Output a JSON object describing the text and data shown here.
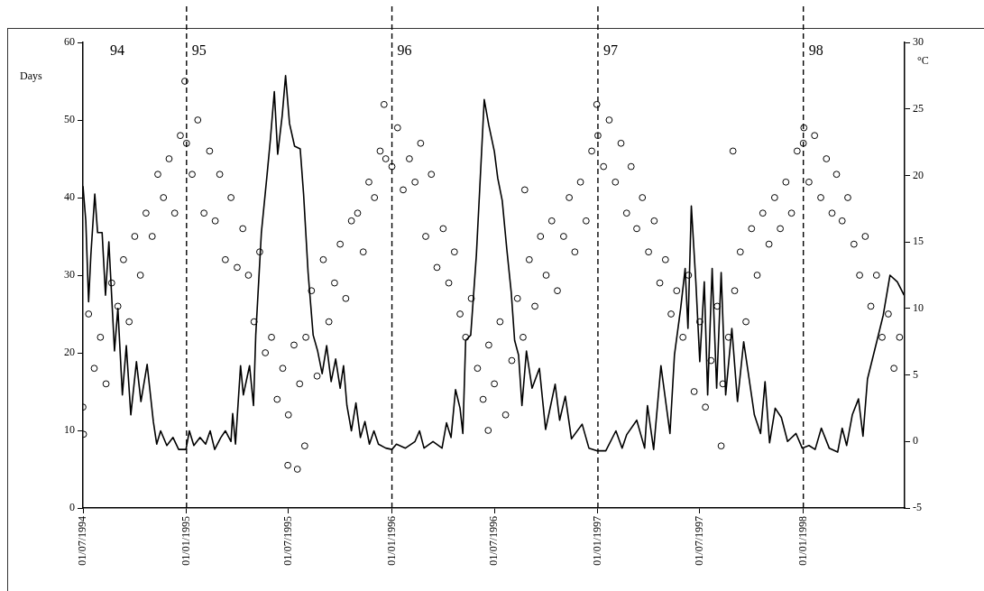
{
  "chart_data": {
    "type": "scatter",
    "ylabel": "Days",
    "y2label": "°C",
    "xlim": [
      "1994-07-01",
      "1998-06-30"
    ],
    "xticks": [
      {
        "value": "1994-07-01",
        "label": "01/07/1994"
      },
      {
        "value": "1995-01-01",
        "label": "01/01/1995"
      },
      {
        "value": "1995-07-01",
        "label": "01/07/1995"
      },
      {
        "value": "1996-01-01",
        "label": "01/01/1996"
      },
      {
        "value": "1996-07-01",
        "label": "01/07/1996"
      },
      {
        "value": "1997-01-01",
        "label": "01/01/1997"
      },
      {
        "value": "1997-07-01",
        "label": "01/07/1997"
      },
      {
        "value": "1998-01-01",
        "label": "01/01/1998"
      }
    ],
    "ylim": [
      0,
      60
    ],
    "yticks": [
      0,
      10,
      20,
      30,
      40,
      50,
      60
    ],
    "y2lim": [
      -5,
      30
    ],
    "y2ticks": [
      -5,
      0,
      5,
      10,
      15,
      20,
      25,
      30
    ],
    "ref_lines": [
      {
        "axis": "x",
        "value": "1995-01-01",
        "label": "95",
        "color": "#000000",
        "line_style": "dashed"
      },
      {
        "axis": "x",
        "value": "1996-01-01",
        "label": "96",
        "color": "#000000",
        "line_style": "dashed"
      },
      {
        "axis": "x",
        "value": "1997-01-01",
        "label": "97",
        "color": "#000000",
        "line_style": "dashed"
      },
      {
        "axis": "x",
        "value": "1998-01-01",
        "label": "98",
        "color": "#000000",
        "line_style": "dashed"
      }
    ],
    "annotations": [
      "94"
    ],
    "series": [
      {
        "type": "scatter",
        "color": "#000000",
        "marker": "circle",
        "x": [
          "1994-07-01",
          "1994-07-11",
          "1994-07-21",
          "1994-08-01",
          "1994-08-11",
          "1994-08-21",
          "1994-09-01",
          "1994-09-11",
          "1994-09-21",
          "1994-10-01",
          "1994-10-11",
          "1994-10-21",
          "1994-11-01",
          "1994-11-11",
          "1994-11-21",
          "1994-12-01",
          "1994-12-11",
          "1994-12-21",
          "1995-01-01",
          "1995-01-11",
          "1995-01-21",
          "1995-02-01",
          "1995-02-11",
          "1995-02-21",
          "1995-03-01",
          "1995-03-11",
          "1995-03-21",
          "1995-04-01",
          "1995-04-11",
          "1995-04-21",
          "1995-05-01",
          "1995-05-11",
          "1995-05-21",
          "1995-06-01",
          "1995-06-11",
          "1995-06-21",
          "1995-07-01",
          "1995-07-11",
          "1995-07-21",
          "1995-08-01",
          "1995-08-11",
          "1995-08-21",
          "1995-09-01",
          "1995-09-11",
          "1995-09-21",
          "1995-10-01",
          "1995-10-11",
          "1995-10-21",
          "1995-11-01",
          "1995-11-11",
          "1995-11-21",
          "1995-12-01",
          "1995-12-11",
          "1995-12-21",
          "1996-01-01",
          "1996-01-11",
          "1996-01-21",
          "1996-02-01",
          "1996-02-11",
          "1996-02-21",
          "1996-03-01",
          "1996-03-11",
          "1996-03-21",
          "1996-04-01",
          "1996-04-11",
          "1996-04-21",
          "1996-05-01",
          "1996-05-11",
          "1996-05-21",
          "1996-06-01",
          "1996-06-11",
          "1996-06-21",
          "1996-07-01",
          "1996-07-11",
          "1996-07-21",
          "1996-08-01",
          "1996-08-11",
          "1996-08-21",
          "1996-09-01",
          "1996-09-11",
          "1996-09-21",
          "1996-10-01",
          "1996-10-11",
          "1996-10-21",
          "1996-11-01",
          "1996-11-11",
          "1996-11-21",
          "1996-12-01",
          "1996-12-11",
          "1996-12-21",
          "1997-01-01",
          "1997-01-11",
          "1997-01-21",
          "1997-02-01",
          "1997-02-11",
          "1997-02-21",
          "1997-03-01",
          "1997-03-11",
          "1997-03-21",
          "1997-04-01",
          "1997-04-11",
          "1997-04-21",
          "1997-05-01",
          "1997-05-11",
          "1997-05-21",
          "1997-06-01",
          "1997-06-11",
          "1997-06-21",
          "1997-07-01",
          "1997-07-11",
          "1997-07-21",
          "1997-08-01",
          "1997-08-11",
          "1997-08-21",
          "1997-09-01",
          "1997-09-11",
          "1997-09-21",
          "1997-10-01",
          "1997-10-11",
          "1997-10-21",
          "1997-11-01",
          "1997-11-11",
          "1997-11-21",
          "1997-12-01",
          "1997-12-11",
          "1997-12-21",
          "1998-01-01",
          "1998-01-11",
          "1998-01-21",
          "1998-02-01",
          "1998-02-11",
          "1998-02-21",
          "1998-03-01",
          "1998-03-11",
          "1998-03-21",
          "1998-04-01",
          "1998-04-11",
          "1998-04-21",
          "1998-05-01",
          "1998-05-11",
          "1998-05-21",
          "1998-06-01",
          "1998-06-11",
          "1998-06-21",
          "1994-07-02",
          "1994-12-29",
          "1995-06-30",
          "1995-07-17",
          "1995-07-30",
          "1995-12-18",
          "1996-06-20",
          "1996-08-24",
          "1996-12-30",
          "1997-08-08",
          "1997-08-29",
          "1998-01-02"
        ],
        "values": [
          13,
          25,
          18,
          22,
          16,
          29,
          26,
          32,
          24,
          35,
          30,
          38,
          35,
          43,
          40,
          45,
          38,
          48,
          47,
          43,
          50,
          38,
          46,
          37,
          43,
          32,
          40,
          31,
          36,
          30,
          24,
          33,
          20,
          22,
          14,
          18,
          12,
          21,
          16,
          22,
          28,
          17,
          32,
          24,
          29,
          34,
          27,
          37,
          38,
          33,
          42,
          40,
          46,
          45,
          44,
          49,
          41,
          45,
          42,
          47,
          35,
          43,
          31,
          36,
          29,
          33,
          25,
          22,
          27,
          18,
          14,
          21,
          16,
          24,
          12,
          19,
          27,
          22,
          32,
          26,
          35,
          30,
          37,
          28,
          35,
          40,
          33,
          42,
          37,
          46,
          48,
          44,
          50,
          42,
          47,
          38,
          44,
          36,
          40,
          33,
          37,
          29,
          32,
          25,
          28,
          22,
          30,
          15,
          24,
          13,
          19,
          26,
          16,
          22,
          28,
          33,
          24,
          36,
          30,
          38,
          34,
          40,
          36,
          42,
          38,
          46,
          47,
          42,
          48,
          40,
          45,
          38,
          43,
          37,
          40,
          34,
          30,
          35,
          26,
          30,
          22,
          25,
          18,
          22,
          9.5,
          55,
          5.5,
          5,
          8,
          52,
          10,
          41,
          52,
          8,
          46,
          49
        ]
      },
      {
        "type": "line",
        "axis": "y2",
        "color": "#000000",
        "marker": "none",
        "line_style": "solid",
        "x": [
          "1994-07-01",
          "1994-07-06",
          "1994-07-11",
          "1994-07-15",
          "1994-07-22",
          "1994-07-27",
          "1994-08-04",
          "1994-08-10",
          "1994-08-16",
          "1994-08-26",
          "1994-09-01",
          "1994-09-09",
          "1994-09-16",
          "1994-09-24",
          "1994-10-04",
          "1994-10-12",
          "1994-10-23",
          "1994-11-03",
          "1994-11-09",
          "1994-11-16",
          "1994-11-27",
          "1994-12-08",
          "1994-12-18",
          "1994-12-31",
          "1995-01-06",
          "1995-01-14",
          "1995-01-25",
          "1995-02-04",
          "1995-02-12",
          "1995-02-20",
          "1995-03-03",
          "1995-03-11",
          "1995-03-21",
          "1995-03-24",
          "1995-03-29",
          "1995-04-07",
          "1995-04-12",
          "1995-04-23",
          "1995-04-30",
          "1995-05-04",
          "1995-05-14",
          "1995-05-24",
          "1995-05-30",
          "1995-06-06",
          "1995-06-12",
          "1995-06-20",
          "1995-06-26",
          "1995-07-03",
          "1995-07-12",
          "1995-07-22",
          "1995-07-28",
          "1995-08-05",
          "1995-08-14",
          "1995-08-22",
          "1995-08-30",
          "1995-09-07",
          "1995-09-15",
          "1995-09-23",
          "1995-10-01",
          "1995-10-07",
          "1995-10-13",
          "1995-10-21",
          "1995-10-29",
          "1995-11-06",
          "1995-11-14",
          "1995-11-22",
          "1995-11-30",
          "1995-12-08",
          "1995-12-21",
          "1996-01-01",
          "1996-01-09",
          "1996-01-25",
          "1996-02-11",
          "1996-02-19",
          "1996-02-27",
          "1996-03-14",
          "1996-03-30",
          "1996-04-07",
          "1996-04-15",
          "1996-04-23",
          "1996-05-01",
          "1996-05-06",
          "1996-05-11",
          "1996-05-20",
          "1996-05-30",
          "1996-06-05",
          "1996-06-13",
          "1996-06-21",
          "1996-07-01",
          "1996-07-07",
          "1996-07-15",
          "1996-07-23",
          "1996-07-31",
          "1996-08-06",
          "1996-08-13",
          "1996-08-19",
          "1996-08-27",
          "1996-09-06",
          "1996-09-19",
          "1996-09-30",
          "1996-10-09",
          "1996-10-17",
          "1996-10-25",
          "1996-11-04",
          "1996-11-15",
          "1996-12-04",
          "1996-12-16",
          "1996-12-30",
          "1997-01-15",
          "1997-02-02",
          "1997-02-13",
          "1997-02-21",
          "1997-03-11",
          "1997-03-25",
          "1997-03-30",
          "1997-04-10",
          "1997-04-23",
          "1997-05-09",
          "1997-05-17",
          "1997-05-28",
          "1997-06-05",
          "1997-06-10",
          "1997-06-16",
          "1997-06-24",
          "1997-07-01",
          "1997-07-09",
          "1997-07-15",
          "1997-07-23",
          "1997-07-31",
          "1997-08-08",
          "1997-08-16",
          "1997-08-27",
          "1997-09-06",
          "1997-09-17",
          "1997-09-25",
          "1997-10-06",
          "1997-10-17",
          "1997-10-25",
          "1997-11-02",
          "1997-11-12",
          "1997-11-23",
          "1997-12-04",
          "1997-12-19",
          "1997-12-30",
          "1998-01-11",
          "1998-01-22",
          "1998-02-02",
          "1998-02-16",
          "1998-03-03",
          "1998-03-11",
          "1998-03-19",
          "1998-03-29",
          "1998-04-09",
          "1998-04-17",
          "1998-04-25",
          "1998-05-12",
          "1998-05-23",
          "1998-06-04",
          "1998-06-17",
          "1998-06-29"
        ],
        "values": [
          19.2,
          16.6,
          10.5,
          14.0,
          18.6,
          15.7,
          15.7,
          11.0,
          15.0,
          6.8,
          10.0,
          3.5,
          7.2,
          2.0,
          6.0,
          3.0,
          5.8,
          1.5,
          -0.2,
          0.8,
          -0.3,
          0.3,
          -0.6,
          -0.6,
          0.8,
          -0.3,
          0.3,
          -0.2,
          0.8,
          -0.6,
          0.3,
          0.8,
          0.0,
          2.1,
          -0.2,
          5.7,
          3.5,
          5.7,
          2.7,
          8.0,
          15.7,
          20.0,
          22.7,
          26.3,
          21.6,
          24.5,
          27.5,
          23.9,
          22.2,
          22.0,
          18.6,
          12.7,
          8.0,
          6.8,
          5.1,
          7.2,
          4.5,
          6.2,
          4.0,
          5.7,
          2.7,
          0.8,
          2.9,
          0.3,
          1.5,
          -0.2,
          0.8,
          -0.2,
          -0.5,
          -0.6,
          -0.2,
          -0.5,
          0.0,
          0.8,
          -0.5,
          0.0,
          -0.5,
          1.4,
          0.3,
          3.9,
          2.5,
          0.6,
          7.6,
          8.0,
          14.0,
          19.0,
          25.7,
          23.8,
          21.8,
          19.8,
          18.1,
          14.5,
          11.2,
          7.6,
          6.5,
          2.7,
          6.8,
          4.0,
          5.5,
          0.9,
          2.7,
          4.3,
          1.6,
          3.4,
          0.2,
          1.3,
          -0.5,
          -0.7,
          -0.7,
          0.8,
          -0.5,
          0.5,
          1.6,
          -0.5,
          2.7,
          -0.6,
          5.7,
          0.6,
          6.5,
          10.0,
          13.0,
          8.5,
          17.7,
          12.0,
          6.0,
          12.0,
          3.5,
          13.0,
          4.0,
          12.7,
          3.5,
          8.5,
          3.0,
          7.5,
          5.2,
          2.0,
          0.6,
          4.5,
          -0.1,
          2.5,
          1.8,
          0.0,
          0.6,
          -0.5,
          -0.3,
          -0.6,
          1.0,
          -0.5,
          -0.8,
          1.0,
          -0.3,
          2.0,
          3.2,
          0.4,
          4.7,
          7.6,
          9.5,
          12.5,
          12.0,
          11.0
        ]
      }
    ]
  }
}
